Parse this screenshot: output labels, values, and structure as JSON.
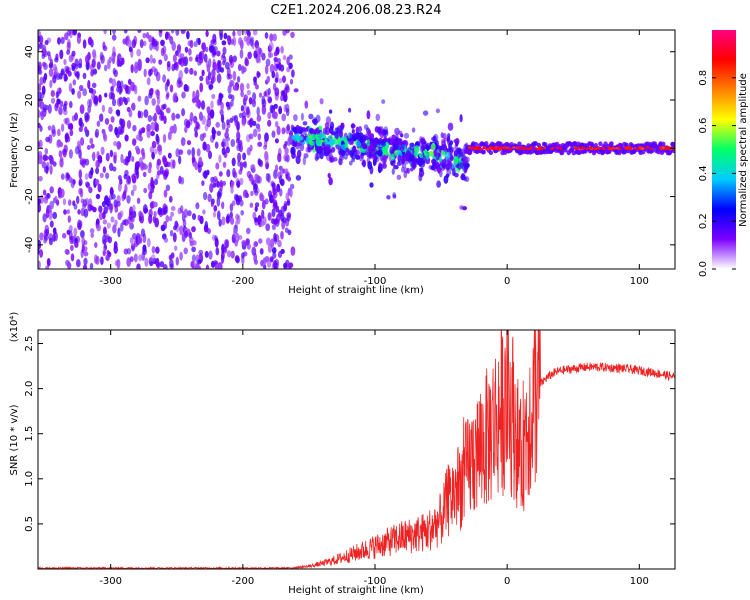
{
  "title": "C2E1.2024.206.08.23.R24",
  "chart_data": [
    {
      "type": "heatmap",
      "xlabel": "Height of straight line (km)",
      "ylabel": "Frequency (Hz)",
      "xlim": [
        -355,
        127
      ],
      "ylim": [
        -50,
        49
      ],
      "xticks": [
        -300,
        -200,
        -100,
        0,
        100
      ],
      "yticks": [
        -40,
        -20,
        0,
        20,
        40
      ],
      "xticklabels": [
        "-300",
        "-200",
        "-100",
        "0",
        "100"
      ],
      "yticklabels": [
        "-40",
        "-20",
        "0",
        "20",
        "40"
      ],
      "colorbar": {
        "label": "Normalized spectral amplitude",
        "range": [
          0,
          1
        ],
        "ticks": [
          0,
          0.2,
          0.4,
          0.6,
          0.8
        ],
        "ticklabels": [
          "0.0",
          "0.2",
          "0.4",
          "0.6",
          "0.8"
        ],
        "colors": [
          "#ffffff",
          "#7a00ff",
          "#0000ff",
          "#00ccff",
          "#00ff66",
          "#ffff00",
          "#ff8000",
          "#ff0000",
          "#ff0080"
        ]
      },
      "regions": [
        {
          "x": [
            -355,
            -162
          ],
          "y": [
            -50,
            49
          ],
          "kind": "noise",
          "level": 0.3
        },
        {
          "x": [
            -162,
            -30
          ],
          "y_center": [
            5,
            -5
          ],
          "y_halfwidth": 8,
          "kind": "diffuse_band",
          "level": 0.5
        },
        {
          "x": [
            -30,
            127
          ],
          "y_center": [
            0,
            0
          ],
          "y_halfwidth": 2,
          "kind": "sharp_carrier",
          "level": 0.9
        }
      ],
      "grid": false
    },
    {
      "type": "line",
      "xlabel": "Height of straight line (km)",
      "ylabel": "SNR (10 * v/v)",
      "y_multiplier": "(x10⁴)",
      "xlim": [
        -355,
        127
      ],
      "ylim": [
        0,
        2.65
      ],
      "xticks": [
        -300,
        -200,
        -100,
        0,
        100
      ],
      "yticks": [
        0.5,
        1.0,
        1.5,
        2.0,
        2.5
      ],
      "xticklabels": [
        "-300",
        "-200",
        "-100",
        "0",
        "100"
      ],
      "yticklabels": [
        "0.5",
        "1.0",
        "1.5",
        "2.0",
        "2.5"
      ],
      "color": "#ee2222",
      "series": [
        {
          "x": [
            -355,
            -300,
            -200,
            -165,
            -150,
            -140,
            -130,
            -120,
            -110,
            -100,
            -90,
            -80,
            -70,
            -60,
            -50,
            -45,
            -40,
            -35,
            -30,
            -25,
            -20,
            -15,
            -10,
            -5,
            0,
            5,
            10,
            15,
            20,
            25,
            30,
            35,
            40,
            50,
            60,
            70,
            80,
            90,
            100,
            110,
            120,
            127
          ],
          "values": [
            0.01,
            0.01,
            0.01,
            0.01,
            0.03,
            0.06,
            0.1,
            0.15,
            0.2,
            0.25,
            0.3,
            0.35,
            0.38,
            0.42,
            0.55,
            0.75,
            0.85,
            0.95,
            1.1,
            1.25,
            1.35,
            1.45,
            1.6,
            1.75,
            1.85,
            1.7,
            1.2,
            1.6,
            1.9,
            2.05,
            2.12,
            2.17,
            2.2,
            2.22,
            2.24,
            2.24,
            2.23,
            2.22,
            2.2,
            2.18,
            2.15,
            2.13
          ]
        }
      ],
      "grid": false
    }
  ]
}
